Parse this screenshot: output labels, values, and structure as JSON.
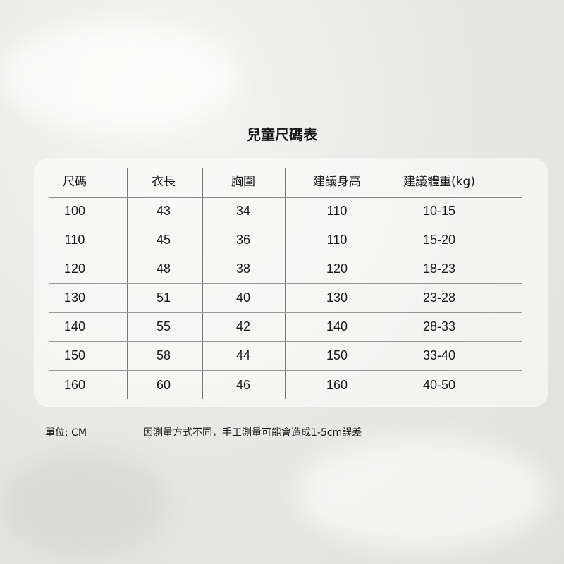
{
  "title": "兒童尺碼表",
  "table": {
    "headers": [
      "尺碼",
      "衣長",
      "胸圍",
      "建議身高",
      "建議體重(kg)"
    ],
    "rows": [
      [
        "100",
        "43",
        "34",
        "110",
        "10-15"
      ],
      [
        "110",
        "45",
        "36",
        "110",
        "15-20"
      ],
      [
        "120",
        "48",
        "38",
        "120",
        "18-23"
      ],
      [
        "130",
        "51",
        "40",
        "130",
        "23-28"
      ],
      [
        "140",
        "55",
        "42",
        "140",
        "28-33"
      ],
      [
        "150",
        "58",
        "44",
        "150",
        "33-40"
      ],
      [
        "160",
        "60",
        "46",
        "160",
        "40-50"
      ]
    ]
  },
  "footer": {
    "unit": "單位: CM",
    "note": "因測量方式不同，手工測量可能會造成1-5cm誤差"
  }
}
